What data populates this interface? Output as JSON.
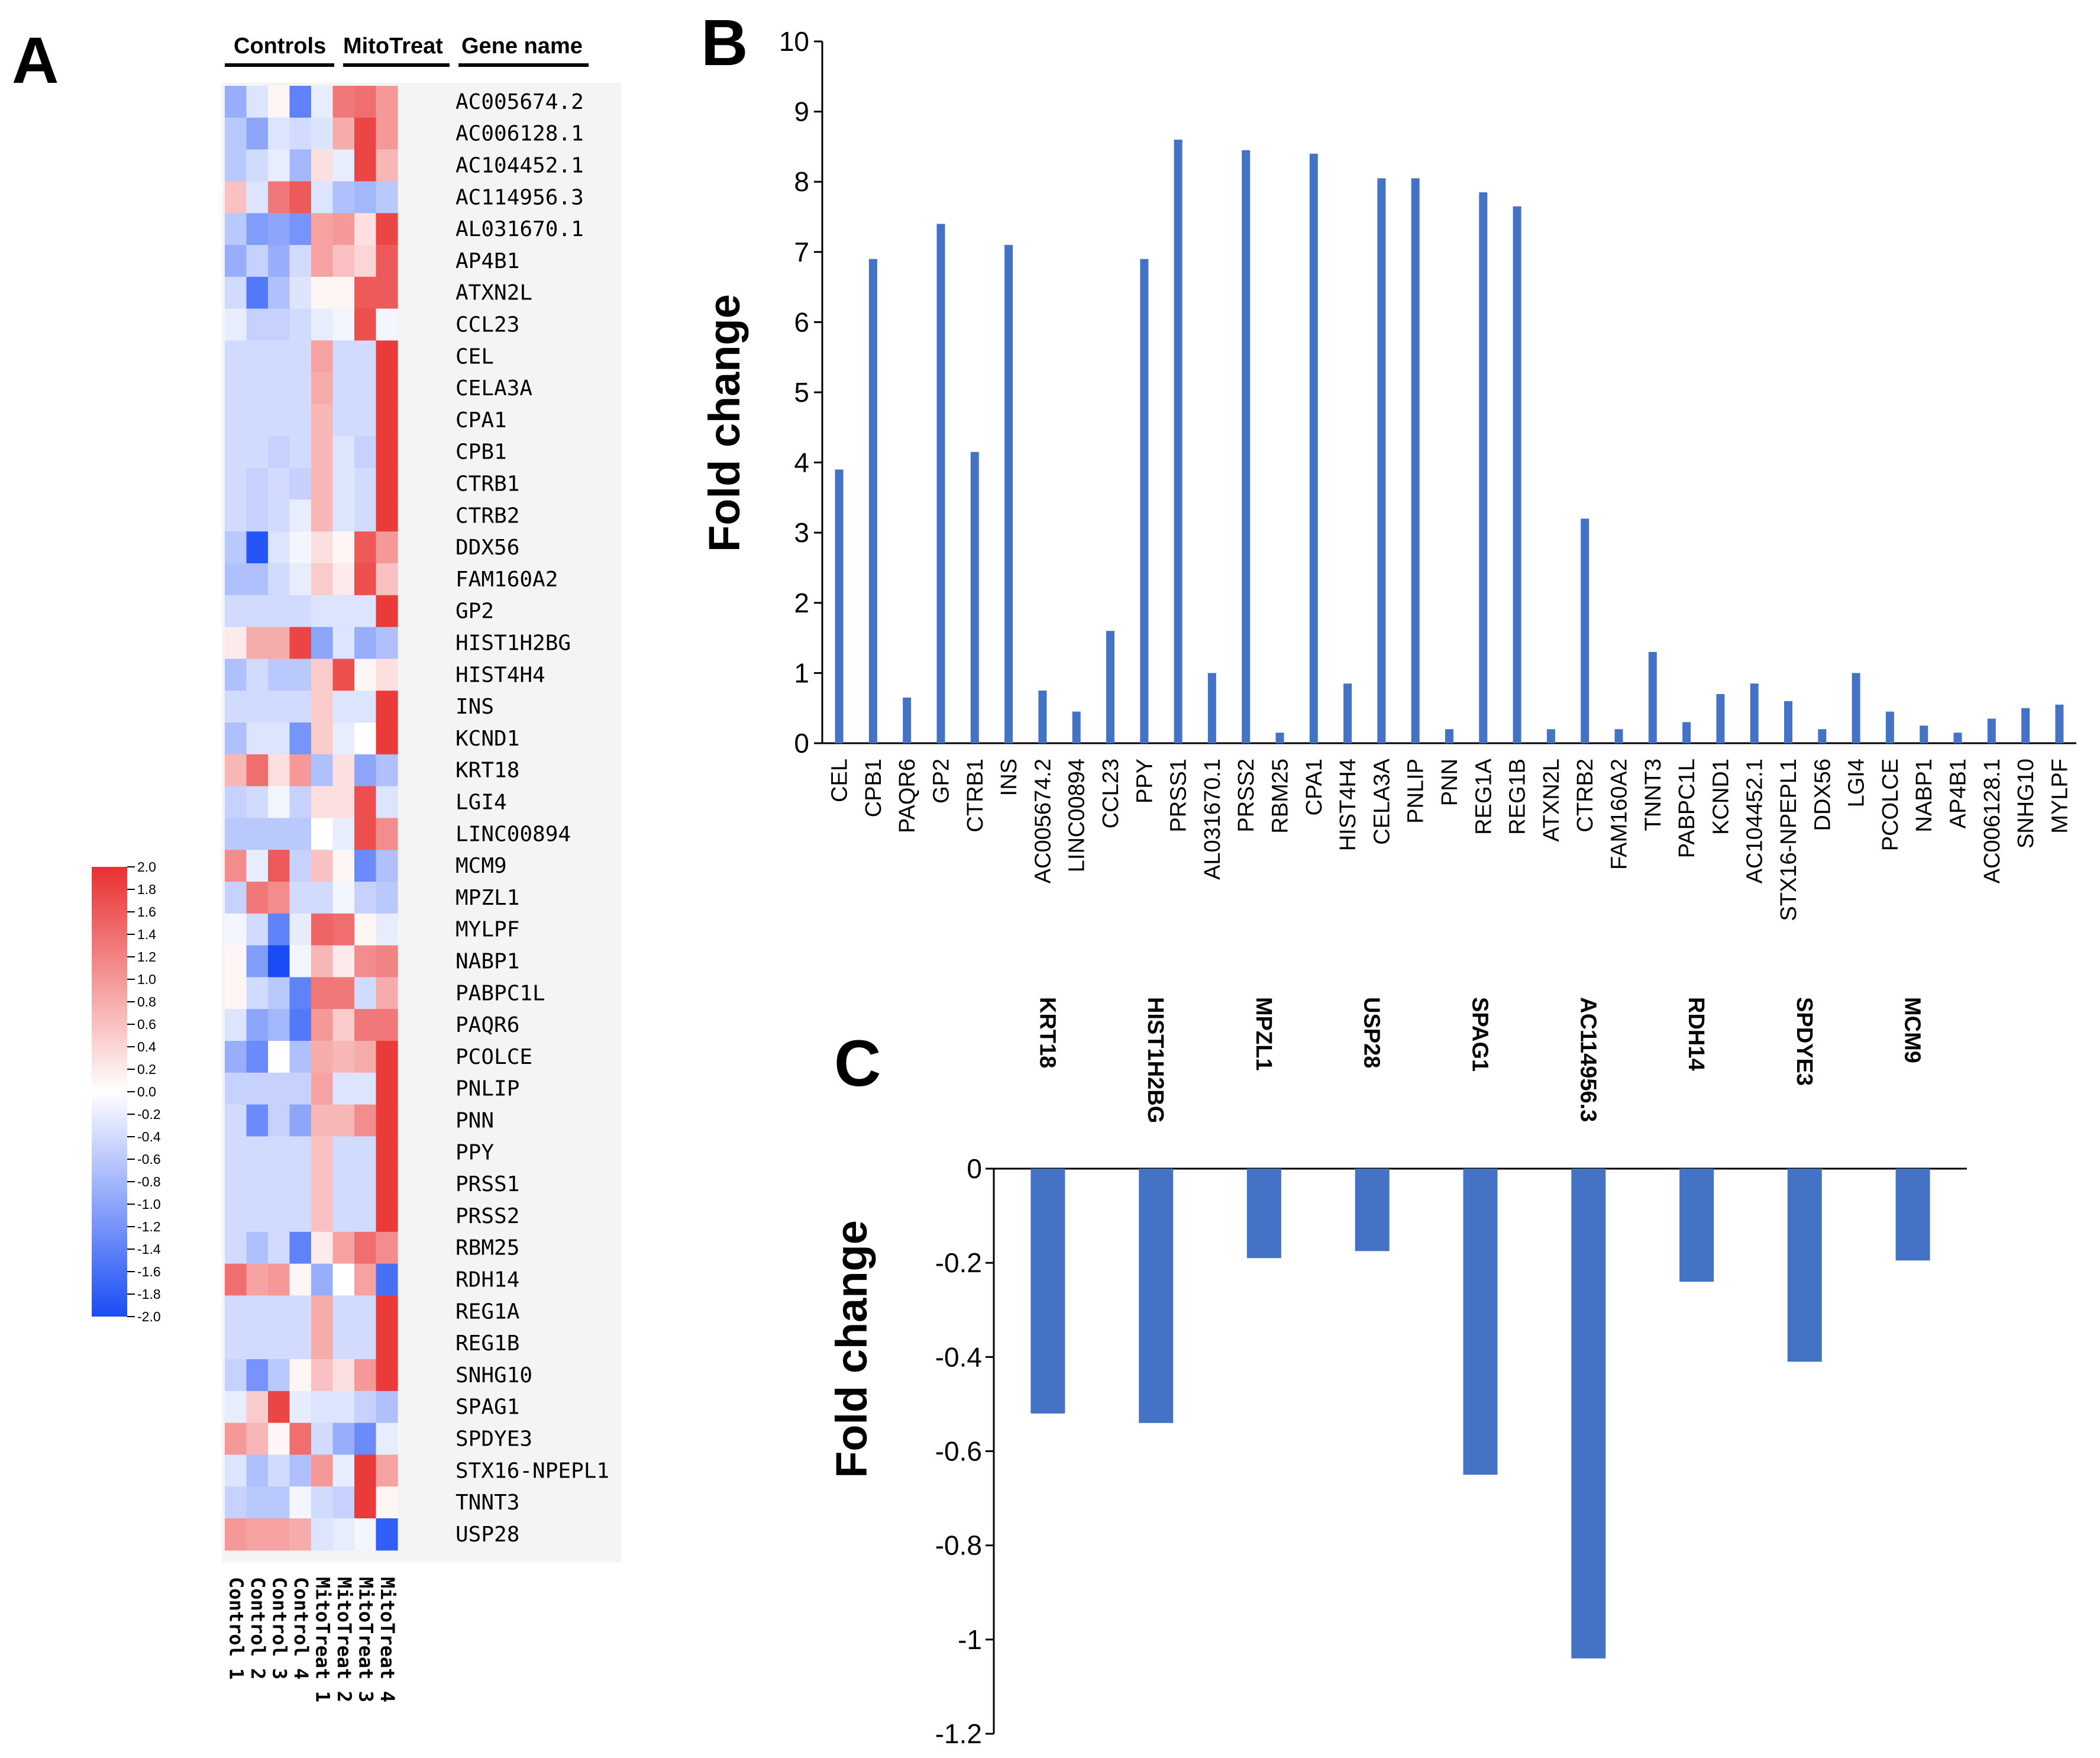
{
  "colors": {
    "bar": "#4472c4",
    "heat_low": "#1a4cf5",
    "heat_mid": "#ffffff",
    "heat_high": "#ea3030",
    "axis": "#000000"
  },
  "chart_data": [
    {
      "panel": "A",
      "type": "heatmap",
      "group_headers": [
        "Controls",
        "MitoTreat",
        "Gene name"
      ],
      "samples": [
        "Control 1",
        "Control 2",
        "Control 3",
        "Control 4",
        "MitoTreat 1",
        "MitoTreat 2",
        "MitoTreat 3",
        "MitoTreat 4"
      ],
      "genes": [
        "AC005674.2",
        "AC006128.1",
        "AC104452.1",
        "AC114956.3",
        "AL031670.1",
        "AP4B1",
        "ATXN2L",
        "CCL23",
        "CEL",
        "CELA3A",
        "CPA1",
        "CPB1",
        "CTRB1",
        "CTRB2",
        "DDX56",
        "FAM160A2",
        "GP2",
        "HIST1H2BG",
        "HIST4H4",
        "INS",
        "KCND1",
        "KRT18",
        "LGI4",
        "LINC00894",
        "MCM9",
        "MPZL1",
        "MYLPF",
        "NABP1",
        "PABPC1L",
        "PAQR6",
        "PCOLCE",
        "PNLIP",
        "PNN",
        "PPY",
        "PRSS1",
        "PRSS2",
        "RBM25",
        "RDH14",
        "REG1A",
        "REG1B",
        "SNHG10",
        "SPAG1",
        "SPDYE3",
        "STX16-NPEPL1",
        "TNNT3",
        "USP28"
      ],
      "values": [
        [
          -0.9,
          -0.3,
          0.1,
          -1.4,
          -0.2,
          1.3,
          1.4,
          1.0
        ],
        [
          -0.6,
          -1.0,
          -0.3,
          -0.4,
          -0.3,
          0.8,
          1.8,
          1.0
        ],
        [
          -0.6,
          -0.4,
          -0.2,
          -0.8,
          0.3,
          -0.2,
          1.8,
          0.7
        ],
        [
          0.6,
          -0.3,
          1.3,
          1.6,
          -0.3,
          -0.7,
          -0.8,
          -0.6
        ],
        [
          -0.6,
          -1.1,
          -1.0,
          -1.2,
          0.9,
          1.0,
          0.3,
          1.8
        ],
        [
          -0.9,
          -0.5,
          -0.9,
          -0.4,
          0.9,
          0.6,
          0.4,
          1.6
        ],
        [
          -0.4,
          -1.5,
          -0.7,
          -0.3,
          0.1,
          0.1,
          1.6,
          1.6
        ],
        [
          -0.2,
          -0.5,
          -0.5,
          -0.4,
          -0.2,
          -0.1,
          1.7,
          -0.1
        ],
        [
          -0.4,
          -0.4,
          -0.4,
          -0.4,
          0.9,
          -0.4,
          -0.4,
          1.9
        ],
        [
          -0.4,
          -0.4,
          -0.4,
          -0.4,
          0.8,
          -0.4,
          -0.4,
          1.9
        ],
        [
          -0.4,
          -0.4,
          -0.4,
          -0.4,
          0.7,
          -0.4,
          -0.4,
          1.9
        ],
        [
          -0.4,
          -0.4,
          -0.5,
          -0.4,
          0.7,
          -0.3,
          -0.5,
          1.9
        ],
        [
          -0.4,
          -0.5,
          -0.4,
          -0.5,
          0.7,
          -0.3,
          -0.4,
          1.9
        ],
        [
          -0.4,
          -0.5,
          -0.4,
          -0.2,
          0.7,
          -0.3,
          -0.4,
          1.9
        ],
        [
          -0.6,
          -1.9,
          -0.3,
          -0.1,
          0.3,
          0.1,
          1.6,
          1.0
        ],
        [
          -0.7,
          -0.7,
          -0.4,
          -0.2,
          0.5,
          0.2,
          1.7,
          0.6
        ],
        [
          -0.4,
          -0.4,
          -0.4,
          -0.4,
          -0.3,
          -0.3,
          -0.3,
          1.9
        ],
        [
          0.2,
          0.8,
          0.8,
          1.8,
          -1.0,
          -0.3,
          -0.9,
          -0.7
        ],
        [
          -0.7,
          -0.4,
          -0.6,
          -0.6,
          0.5,
          1.7,
          0.1,
          0.3
        ],
        [
          -0.4,
          -0.4,
          -0.4,
          -0.4,
          0.5,
          -0.3,
          -0.3,
          1.9
        ],
        [
          -0.7,
          -0.3,
          -0.3,
          -1.2,
          0.5,
          -0.2,
          0.0,
          1.9
        ],
        [
          0.7,
          1.4,
          0.3,
          1.0,
          -0.7,
          0.3,
          -1.0,
          -0.7
        ],
        [
          -0.5,
          -0.4,
          -0.1,
          -0.5,
          0.3,
          0.3,
          1.7,
          -0.3
        ],
        [
          -0.6,
          -0.6,
          -0.6,
          -0.6,
          0.0,
          -0.2,
          1.7,
          1.1
        ],
        [
          1.1,
          -0.2,
          1.6,
          -0.5,
          0.6,
          0.1,
          -1.3,
          -0.7
        ],
        [
          -0.5,
          1.3,
          1.1,
          -0.4,
          -0.4,
          -0.1,
          -0.5,
          -0.6
        ],
        [
          -0.1,
          -0.4,
          -1.4,
          -0.2,
          1.5,
          1.4,
          0.1,
          -0.2
        ],
        [
          0.1,
          -1.1,
          -2.0,
          -0.1,
          0.7,
          0.2,
          1.1,
          1.2
        ],
        [
          0.1,
          -0.4,
          -0.6,
          -1.4,
          1.3,
          1.3,
          -0.4,
          0.8
        ],
        [
          -0.3,
          -1.0,
          -0.8,
          -1.5,
          1.0,
          0.5,
          1.3,
          1.3
        ],
        [
          -0.9,
          -1.3,
          0.0,
          -0.7,
          0.8,
          0.7,
          0.8,
          1.9
        ],
        [
          -0.5,
          -0.5,
          -0.5,
          -0.5,
          0.9,
          -0.3,
          -0.3,
          1.9
        ],
        [
          -0.4,
          -1.3,
          -0.5,
          -1.0,
          0.7,
          0.7,
          1.1,
          1.9
        ],
        [
          -0.4,
          -0.4,
          -0.4,
          -0.4,
          0.6,
          -0.4,
          -0.4,
          1.9
        ],
        [
          -0.4,
          -0.4,
          -0.4,
          -0.4,
          0.6,
          -0.4,
          -0.4,
          1.9
        ],
        [
          -0.4,
          -0.4,
          -0.4,
          -0.4,
          0.6,
          -0.4,
          -0.4,
          1.9
        ],
        [
          -0.4,
          -0.7,
          -0.4,
          -1.4,
          0.2,
          0.9,
          1.4,
          1.1
        ],
        [
          1.4,
          0.9,
          1.0,
          0.1,
          -0.9,
          0.0,
          0.9,
          -1.6
        ],
        [
          -0.4,
          -0.4,
          -0.4,
          -0.4,
          0.8,
          -0.4,
          -0.4,
          1.9
        ],
        [
          -0.4,
          -0.4,
          -0.4,
          -0.4,
          0.8,
          -0.4,
          -0.4,
          1.9
        ],
        [
          -0.5,
          -1.2,
          -0.6,
          0.1,
          0.6,
          0.3,
          1.0,
          1.9
        ],
        [
          -0.2,
          0.5,
          1.8,
          -0.2,
          -0.3,
          -0.3,
          -0.5,
          -0.7
        ],
        [
          1.0,
          0.7,
          0.1,
          1.4,
          -0.4,
          -0.9,
          -1.3,
          -0.2
        ],
        [
          -0.3,
          -0.7,
          -0.4,
          -0.7,
          1.0,
          -0.2,
          1.9,
          0.9
        ],
        [
          -0.5,
          -0.6,
          -0.6,
          -0.1,
          -0.4,
          -0.5,
          1.9,
          0.1
        ],
        [
          1.0,
          0.9,
          0.9,
          0.8,
          -0.3,
          -0.2,
          -0.1,
          -1.8
        ]
      ],
      "colorbar": {
        "ticks": [
          "2.0",
          "1.8",
          "1.6",
          "1.4",
          "1.2",
          "1.0",
          "0.8",
          "0.6",
          "0.4",
          "0.2",
          "0.0",
          "-0.2",
          "-0.4",
          "-0.6",
          "-0.8",
          "-1.0",
          "-1.2",
          "-1.4",
          "-1.6",
          "-1.8",
          "-2.0"
        ],
        "range": [
          -2.0,
          2.0
        ]
      }
    },
    {
      "panel": "B",
      "type": "bar",
      "ylabel": "Fold change",
      "ylim": [
        0,
        10
      ],
      "yticks": [
        0,
        1,
        2,
        3,
        4,
        5,
        6,
        7,
        8,
        9,
        10
      ],
      "categories": [
        "CEL",
        "CPB1",
        "PAQR6",
        "GP2",
        "CTRB1",
        "INS",
        "AC005674.2",
        "LINC00894",
        "CCL23",
        "PPY",
        "PRSS1",
        "AL031670.1",
        "PRSS2",
        "RBM25",
        "CPA1",
        "HIST4H4",
        "CELA3A",
        "PNLIP",
        "PNN",
        "REG1A",
        "REG1B",
        "ATXN2L",
        "CTRB2",
        "FAM160A2",
        "TNNT3",
        "PABPC1L",
        "KCND1",
        "AC104452.1",
        "STX16-NPEPL1",
        "DDX56",
        "LGI4",
        "PCOLCE",
        "NABP1",
        "AP4B1",
        "AC006128.1",
        "SNHG10",
        "MYLPF"
      ],
      "values": [
        3.9,
        6.9,
        0.65,
        7.4,
        4.15,
        7.1,
        0.75,
        0.45,
        1.6,
        6.9,
        8.6,
        1.0,
        8.45,
        0.15,
        8.4,
        0.85,
        8.05,
        8.05,
        0.2,
        7.85,
        7.65,
        0.2,
        3.2,
        0.2,
        1.3,
        0.3,
        0.7,
        0.85,
        0.6,
        0.2,
        1.0,
        0.45,
        0.25,
        0.15,
        0.35,
        0.5,
        0.55
      ]
    },
    {
      "panel": "C",
      "type": "bar",
      "ylabel": "Fold change",
      "ylim": [
        -1.2,
        0
      ],
      "yticks": [
        "0",
        "-0.2",
        "-0.4",
        "-0.6",
        "-0.8",
        "-1",
        "-1.2"
      ],
      "categories": [
        "KRT18",
        "HIST1H2BG",
        "MPZL1",
        "USP28",
        "SPAG1",
        "AC114956.3",
        "RDH14",
        "SPDYE3",
        "MCM9"
      ],
      "values": [
        -0.52,
        -0.54,
        -0.19,
        -0.175,
        -0.65,
        -1.04,
        -0.24,
        -0.41,
        -0.195
      ]
    }
  ]
}
